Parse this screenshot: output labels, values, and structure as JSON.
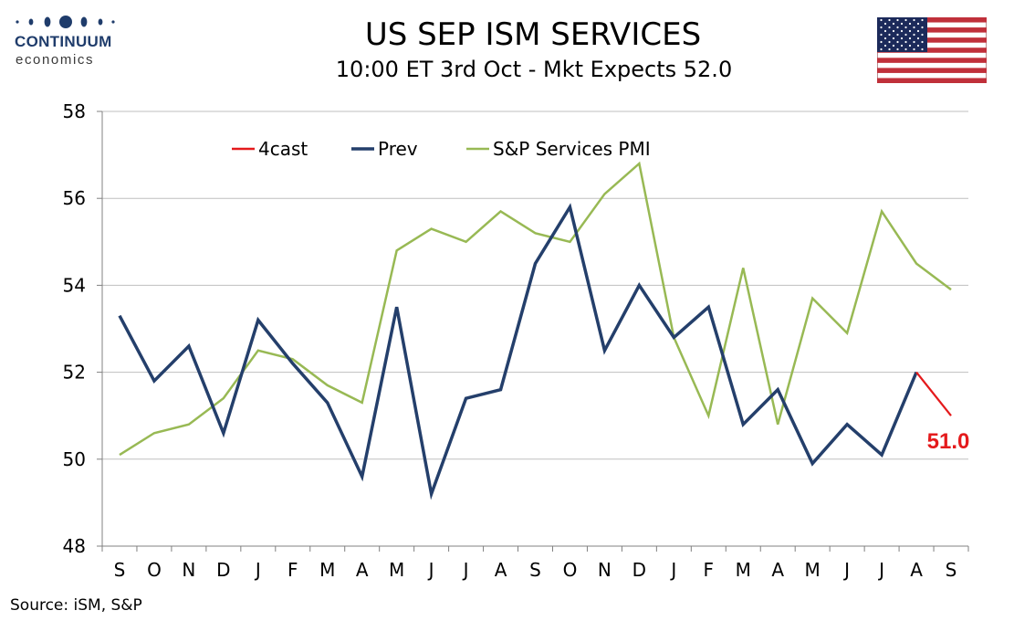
{
  "header": {
    "logo_title": "CONTINUUM",
    "logo_sub": "economics",
    "title": "US SEP ISM SERVICES",
    "subtitle": "10:00 ET 3rd Oct - Mkt Expects 52.0",
    "flag_icon": "us-flag-icon"
  },
  "footer": {
    "source": "Source: iSM, S&P"
  },
  "colors": {
    "forecast": "#e41a1c",
    "prev": "#243f6b",
    "pmi": "#98b954",
    "grid": "#bfbfbf",
    "logo": "#1f3c6b"
  },
  "chart_data": {
    "type": "line",
    "categories": [
      "S",
      "O",
      "N",
      "D",
      "J",
      "F",
      "M",
      "A",
      "M",
      "J",
      "J",
      "A",
      "S",
      "O",
      "N",
      "D",
      "J",
      "F",
      "M",
      "A",
      "M",
      "J",
      "J",
      "A",
      "S"
    ],
    "ylim": [
      48,
      58
    ],
    "yticks": [
      48,
      50,
      52,
      54,
      56,
      58
    ],
    "grid": true,
    "legend_position": "top-left",
    "series": [
      {
        "name": "4cast",
        "color": "#e41a1c",
        "values": [
          null,
          null,
          null,
          null,
          null,
          null,
          null,
          null,
          null,
          null,
          null,
          null,
          null,
          null,
          null,
          null,
          null,
          null,
          null,
          null,
          null,
          null,
          null,
          52.0,
          51.0
        ]
      },
      {
        "name": "Prev",
        "color": "#243f6b",
        "values": [
          53.3,
          51.8,
          52.6,
          50.6,
          53.2,
          52.2,
          51.3,
          49.6,
          53.5,
          49.2,
          51.4,
          51.6,
          54.5,
          55.8,
          52.5,
          54.0,
          52.8,
          53.5,
          50.8,
          51.6,
          49.9,
          50.8,
          50.1,
          52.0,
          null
        ]
      },
      {
        "name": "S&P Services PMI",
        "color": "#98b954",
        "values": [
          50.1,
          50.6,
          50.8,
          51.4,
          52.5,
          52.3,
          51.7,
          51.3,
          54.8,
          55.3,
          55.0,
          55.7,
          55.2,
          55.0,
          56.1,
          56.8,
          52.8,
          51.0,
          54.4,
          50.8,
          53.7,
          52.9,
          55.7,
          54.5,
          53.9
        ]
      }
    ],
    "annotation": {
      "text": "51.0",
      "index": 24,
      "value": 51.0,
      "color": "#e41a1c"
    }
  }
}
